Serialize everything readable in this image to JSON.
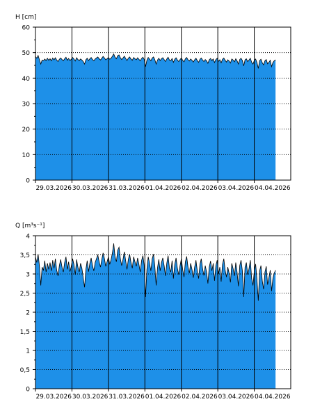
{
  "colors": {
    "fill": "#1e90e8",
    "line": "#000000",
    "grid": "#000000",
    "background": "#ffffff"
  },
  "chart_data": [
    {
      "type": "area",
      "ylabel": "H [cm]",
      "ylim": [
        0,
        60
      ],
      "yticks": [
        "0",
        "10",
        "20",
        "30",
        "40",
        "50",
        "60"
      ],
      "xlim": [
        "2026-03-29T00:00",
        "2026-04-05T00:00"
      ],
      "xticks": [
        "29.03.2026",
        "30.03.2026",
        "31.03.2026",
        "01.04.2026",
        "02.04.2026",
        "03.04.2026",
        "04.04.2026"
      ],
      "grid": true,
      "x_start": "2026-03-29T00:00",
      "x_end": "2026-04-04T14:00",
      "values": [
        48.5,
        47.8,
        48.9,
        47.2,
        45.5,
        47.1,
        46.8,
        47.5,
        46.9,
        47.8,
        47.0,
        47.6,
        46.8,
        47.9,
        47.2,
        48.0,
        47.1,
        46.5,
        47.4,
        47.9,
        47.3,
        46.8,
        47.6,
        48.2,
        47.0,
        47.7,
        46.9,
        47.4,
        48.1,
        47.5,
        46.7,
        48.0,
        47.3,
        46.9,
        47.5,
        47.1,
        46.5,
        45.5,
        47.2,
        47.8,
        46.9,
        47.6,
        48.1,
        47.3,
        46.8,
        47.5,
        47.9,
        48.3,
        47.6,
        47.1,
        47.8,
        48.5,
        47.9,
        47.2,
        47.6,
        48.1,
        47.4,
        47.8,
        48.6,
        49.5,
        48.2,
        47.6,
        48.8,
        49.1,
        48.0,
        47.3,
        47.9,
        48.6,
        47.7,
        46.9,
        47.8,
        48.3,
        47.5,
        47.0,
        48.1,
        47.6,
        47.2,
        48.0,
        47.4,
        46.8,
        47.7,
        48.2,
        47.3,
        44.5,
        47.0,
        48.1,
        47.5,
        46.8,
        47.9,
        48.3,
        47.2,
        45.5,
        47.1,
        47.8,
        46.9,
        47.6,
        48.0,
        47.3,
        46.5,
        47.5,
        48.2,
        47.1,
        46.8,
        47.7,
        46.2,
        47.4,
        48.0,
        47.1,
        46.5,
        47.3,
        47.9,
        47.0,
        46.4,
        47.6,
        48.1,
        47.2,
        46.7,
        47.5,
        47.0,
        46.3,
        47.2,
        47.8,
        46.9,
        46.2,
        47.4,
        47.9,
        47.1,
        46.5,
        47.3,
        46.8,
        45.8,
        47.2,
        47.7,
        46.9,
        47.5,
        46.1,
        47.3,
        47.8,
        46.6,
        47.2,
        46.0,
        47.4,
        47.9,
        47.0,
        46.3,
        47.2,
        46.7,
        45.9,
        47.5,
        47.1,
        46.4,
        47.6,
        46.8,
        45.5,
        47.3,
        47.8,
        46.9,
        44.8,
        47.2,
        47.6,
        46.5,
        47.1,
        47.8,
        46.2,
        45.5,
        47.0,
        47.5,
        46.1,
        43.8,
        46.9,
        47.4,
        46.0,
        45.2,
        46.8,
        47.3,
        45.6,
        46.2,
        47.0,
        44.5,
        46.1,
        46.8,
        47.2
      ]
    },
    {
      "type": "area",
      "ylabel": "Q [m³s⁻¹]",
      "ylim": [
        0,
        4
      ],
      "yticks": [
        "0",
        "0,5",
        "1",
        "1,5",
        "2",
        "2,5",
        "3",
        "3,5",
        "4"
      ],
      "xlim": [
        "2026-03-29T00:00",
        "2026-04-05T00:00"
      ],
      "xticks": [
        "29.03.2026",
        "30.03.2026",
        "31.03.2026",
        "01.04.2026",
        "02.04.2026",
        "03.04.2026",
        "04.04.2026"
      ],
      "grid": true,
      "x_start": "2026-03-29T00:00",
      "x_end": "2026-04-04T14:00",
      "values": [
        3.45,
        3.3,
        3.52,
        3.2,
        2.7,
        3.18,
        3.1,
        3.35,
        3.05,
        3.28,
        3.12,
        3.3,
        3.08,
        3.36,
        3.15,
        3.4,
        3.1,
        2.95,
        3.22,
        3.38,
        3.18,
        3.05,
        3.3,
        3.45,
        3.12,
        3.32,
        3.06,
        3.2,
        3.4,
        3.25,
        2.98,
        3.38,
        3.18,
        3.05,
        3.28,
        3.15,
        2.9,
        2.65,
        3.12,
        3.35,
        3.06,
        3.28,
        3.42,
        3.22,
        3.08,
        3.3,
        3.4,
        3.5,
        3.32,
        3.18,
        3.38,
        3.55,
        3.4,
        3.2,
        3.32,
        3.45,
        3.25,
        3.38,
        3.55,
        3.8,
        3.45,
        3.32,
        3.62,
        3.7,
        3.4,
        3.22,
        3.38,
        3.58,
        3.35,
        3.12,
        3.38,
        3.52,
        3.3,
        3.15,
        3.45,
        3.32,
        3.2,
        3.42,
        3.25,
        3.05,
        3.35,
        3.48,
        3.22,
        2.4,
        3.12,
        3.45,
        3.28,
        3.08,
        3.4,
        3.52,
        3.2,
        2.7,
        3.16,
        3.38,
        3.08,
        3.3,
        3.42,
        3.22,
        2.95,
        3.28,
        3.48,
        3.15,
        3.05,
        3.35,
        2.88,
        3.25,
        3.42,
        3.15,
        2.98,
        3.22,
        3.4,
        3.12,
        2.92,
        3.32,
        3.46,
        3.18,
        3.02,
        3.28,
        3.12,
        2.9,
        3.18,
        3.36,
        3.08,
        2.88,
        3.25,
        3.4,
        3.14,
        2.96,
        3.22,
        3.05,
        2.75,
        3.18,
        3.34,
        3.08,
        3.28,
        2.82,
        3.22,
        3.36,
        3.0,
        3.18,
        2.8,
        3.25,
        3.4,
        3.1,
        2.92,
        3.18,
        3.02,
        2.78,
        3.28,
        3.14,
        2.95,
        3.3,
        3.05,
        2.68,
        3.22,
        3.36,
        3.08,
        2.4,
        3.18,
        3.3,
        2.98,
        3.14,
        3.36,
        2.88,
        2.7,
        3.1,
        3.26,
        2.85,
        2.3,
        3.08,
        3.22,
        2.82,
        2.6,
        3.05,
        3.2,
        2.72,
        2.9,
        3.1,
        2.55,
        2.88,
        3.02,
        3.1
      ]
    }
  ]
}
